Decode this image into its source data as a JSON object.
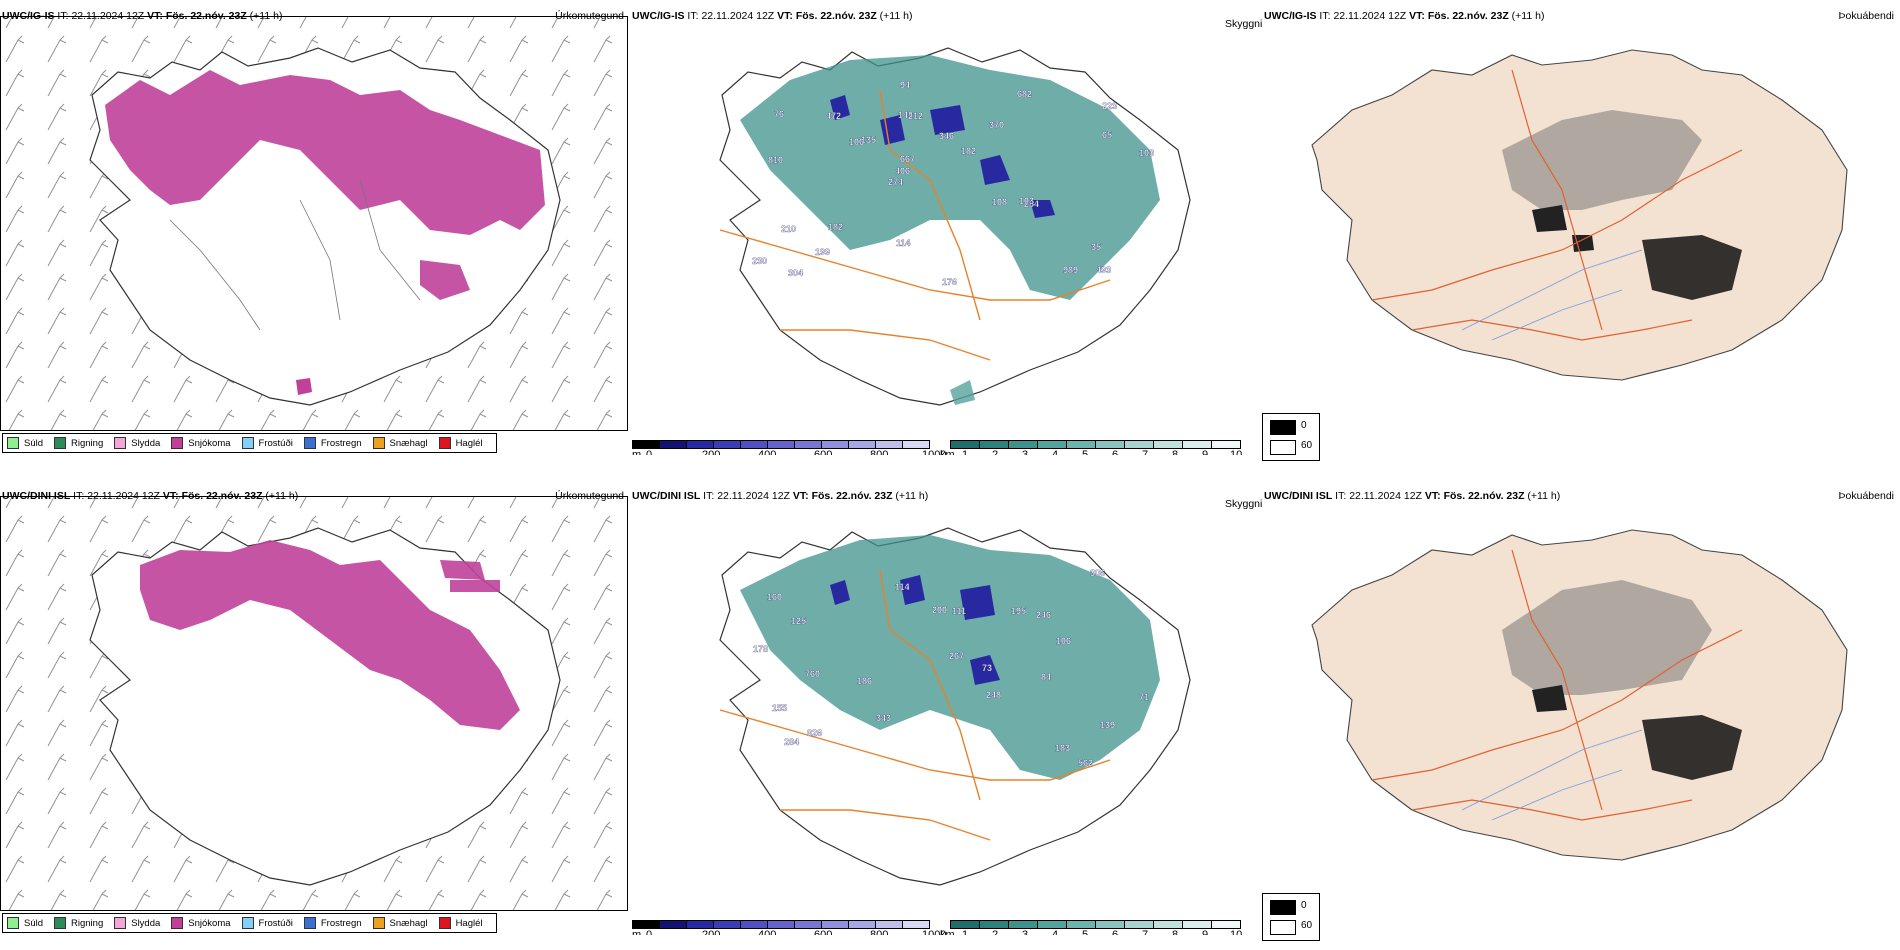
{
  "rows": [
    {
      "model": "UWC/IG-IS",
      "it_label": "IT:",
      "it_value": "22.11.2024 12Z",
      "vt_label": "VT:",
      "vt_value": "Fös. 22.nóv. 23Z",
      "lead": "(+11 h)",
      "rain_labels": [
        "493",
        "810",
        "223",
        "274",
        "370",
        "304",
        "149",
        "346",
        "210",
        "135",
        "230",
        "199",
        "212",
        "182",
        "254",
        "76",
        "94",
        "103",
        "108",
        "65",
        "406",
        "114",
        "667",
        "472",
        "682",
        "182",
        "989",
        "35",
        "103",
        "176",
        "106"
      ]
    },
    {
      "model": "UWC/DINI ISL",
      "it_label": "IT:",
      "it_value": "22.11.2024 12Z",
      "vt_label": "VT:",
      "vt_value": "Fös. 22.nóv. 23Z",
      "lead": "(+11 h)",
      "rain_labels": [
        "562",
        "760",
        "248",
        "160",
        "139",
        "125",
        "826",
        "186",
        "246",
        "200",
        "195",
        "183",
        "343",
        "114",
        "73",
        "155",
        "84",
        "267",
        "178",
        "284",
        "306",
        "111",
        "106",
        "71"
      ]
    }
  ],
  "panel_titles": {
    "precip_type": "Úrkomutegund",
    "visibility": "Skyggni",
    "cloud": "Þokuábendi"
  },
  "precip_type_legend": [
    {
      "label": "Súld",
      "color": "#90ee90"
    },
    {
      "label": "Rigning",
      "color": "#2e8b57"
    },
    {
      "label": "Slydda",
      "color": "#f4a6d7"
    },
    {
      "label": "Snjókoma",
      "color": "#c0419a"
    },
    {
      "label": "Frostúði",
      "color": "#87cefa"
    },
    {
      "label": "Frostregn",
      "color": "#3b6fd1"
    },
    {
      "label": "Snæhagl",
      "color": "#f0a020"
    },
    {
      "label": "Haglél",
      "color": "#e0141e"
    }
  ],
  "height_scale": {
    "unit": "m",
    "ticks": [
      "0",
      "200",
      "400",
      "600",
      "800",
      "1000"
    ],
    "colors": [
      "#000000",
      "#131370",
      "#2828a0",
      "#3c3cb4",
      "#5050c0",
      "#6464c8",
      "#7878d0",
      "#9090dc",
      "#a8a8e4",
      "#c0c0ec",
      "#d8d8f4"
    ]
  },
  "visibility_scale": {
    "unit": "km",
    "ticks": [
      "1",
      "2",
      "3",
      "4",
      "5",
      "6",
      "7",
      "8",
      "9",
      "10"
    ],
    "colors": [
      "#1f6e6a",
      "#2f807b",
      "#3f918b",
      "#56a39d",
      "#6fb3ad",
      "#8cc3be",
      "#a8d3cf",
      "#c2e1de",
      "#dceeec",
      "#f2f8f7"
    ]
  },
  "gray_scale": {
    "ticks": [
      "0",
      "60"
    ],
    "colors": [
      "#000000",
      "#ffffff"
    ]
  }
}
